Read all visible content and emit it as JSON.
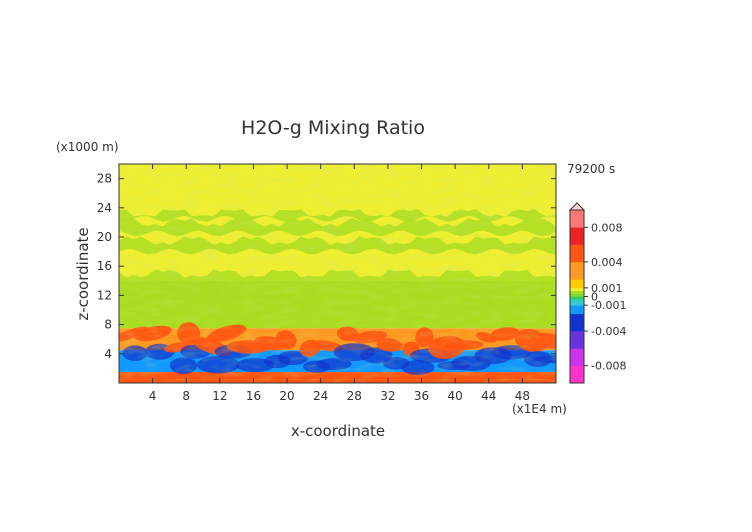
{
  "chart_data": {
    "type": "heatmap",
    "title": "H2O-g Mixing Ratio",
    "xlabel": "x-coordinate",
    "ylabel": "z-coordinate",
    "x_unit": "(x1E4 m)",
    "y_unit": "(x1000 m)",
    "time_label": "79200 s",
    "xlim": [
      0,
      52
    ],
    "ylim": [
      0,
      30
    ],
    "x_ticks": [
      "4",
      "8",
      "12",
      "16",
      "20",
      "24",
      "28",
      "32",
      "36",
      "40",
      "44",
      "48"
    ],
    "y_ticks": [
      "4",
      "8",
      "12",
      "16",
      "20",
      "24",
      "28"
    ],
    "colorbar": {
      "range": [
        -0.01,
        0.01
      ],
      "tick_labels": [
        "0.008",
        "0.004",
        "0.001",
        "0",
        "-0.001",
        "-0.004",
        "-0.008"
      ],
      "tick_values": [
        0.008,
        0.004,
        0.001,
        0,
        -0.001,
        -0.004,
        -0.008
      ]
    },
    "layers": [
      {
        "z": [
          0,
          1.5
        ],
        "value": 0.004
      },
      {
        "z": [
          1.5,
          4.5
        ],
        "value": -0.002
      },
      {
        "z": [
          4.5,
          7.5
        ],
        "value": 0.003
      },
      {
        "z": [
          7.5,
          14
        ],
        "value": 0.0003
      },
      {
        "z": [
          14,
          30
        ],
        "value": 0.0008
      }
    ]
  }
}
